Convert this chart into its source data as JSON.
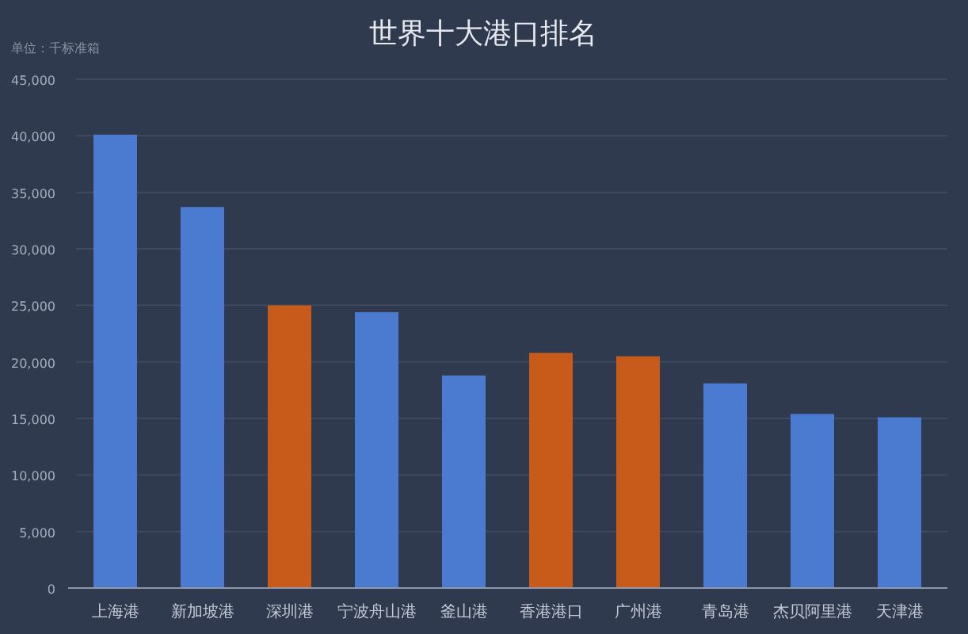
{
  "chart_data": {
    "type": "bar",
    "title": "世界十大港口排名",
    "annotations": [
      "单位：千标准箱"
    ],
    "categories": [
      "上海港",
      "新加坡港",
      "深圳港",
      "宁波舟山港",
      "釜山港",
      "香港港口",
      "广州港",
      "青岛港",
      "杰贝阿里港",
      "天津港"
    ],
    "values": [
      40100,
      33700,
      25000,
      24400,
      18800,
      20800,
      20500,
      18100,
      15400,
      15100
    ],
    "colors": [
      "#4a7bd0",
      "#4a7bd0",
      "#c85a1a",
      "#4a7bd0",
      "#4a7bd0",
      "#c85a1a",
      "#c85a1a",
      "#4a7bd0",
      "#4a7bd0",
      "#4a7bd0"
    ],
    "ylim": [
      0,
      45000
    ],
    "yticks": [
      0,
      {
        "value": 5000,
        "label": "5,000"
      },
      {
        "value": 10000,
        "label": "10,000"
      },
      {
        "value": 15000,
        "label": "15,000"
      },
      {
        "value": 20000,
        "label": "20,000"
      },
      {
        "value": 25000,
        "label": "25,000"
      },
      {
        "value": 30000,
        "label": "30,000"
      },
      {
        "value": 35000,
        "label": "35,000"
      },
      {
        "value": 40000,
        "label": "40,000"
      },
      {
        "value": 45000,
        "label": "45,000"
      }
    ],
    "grid": "y"
  }
}
